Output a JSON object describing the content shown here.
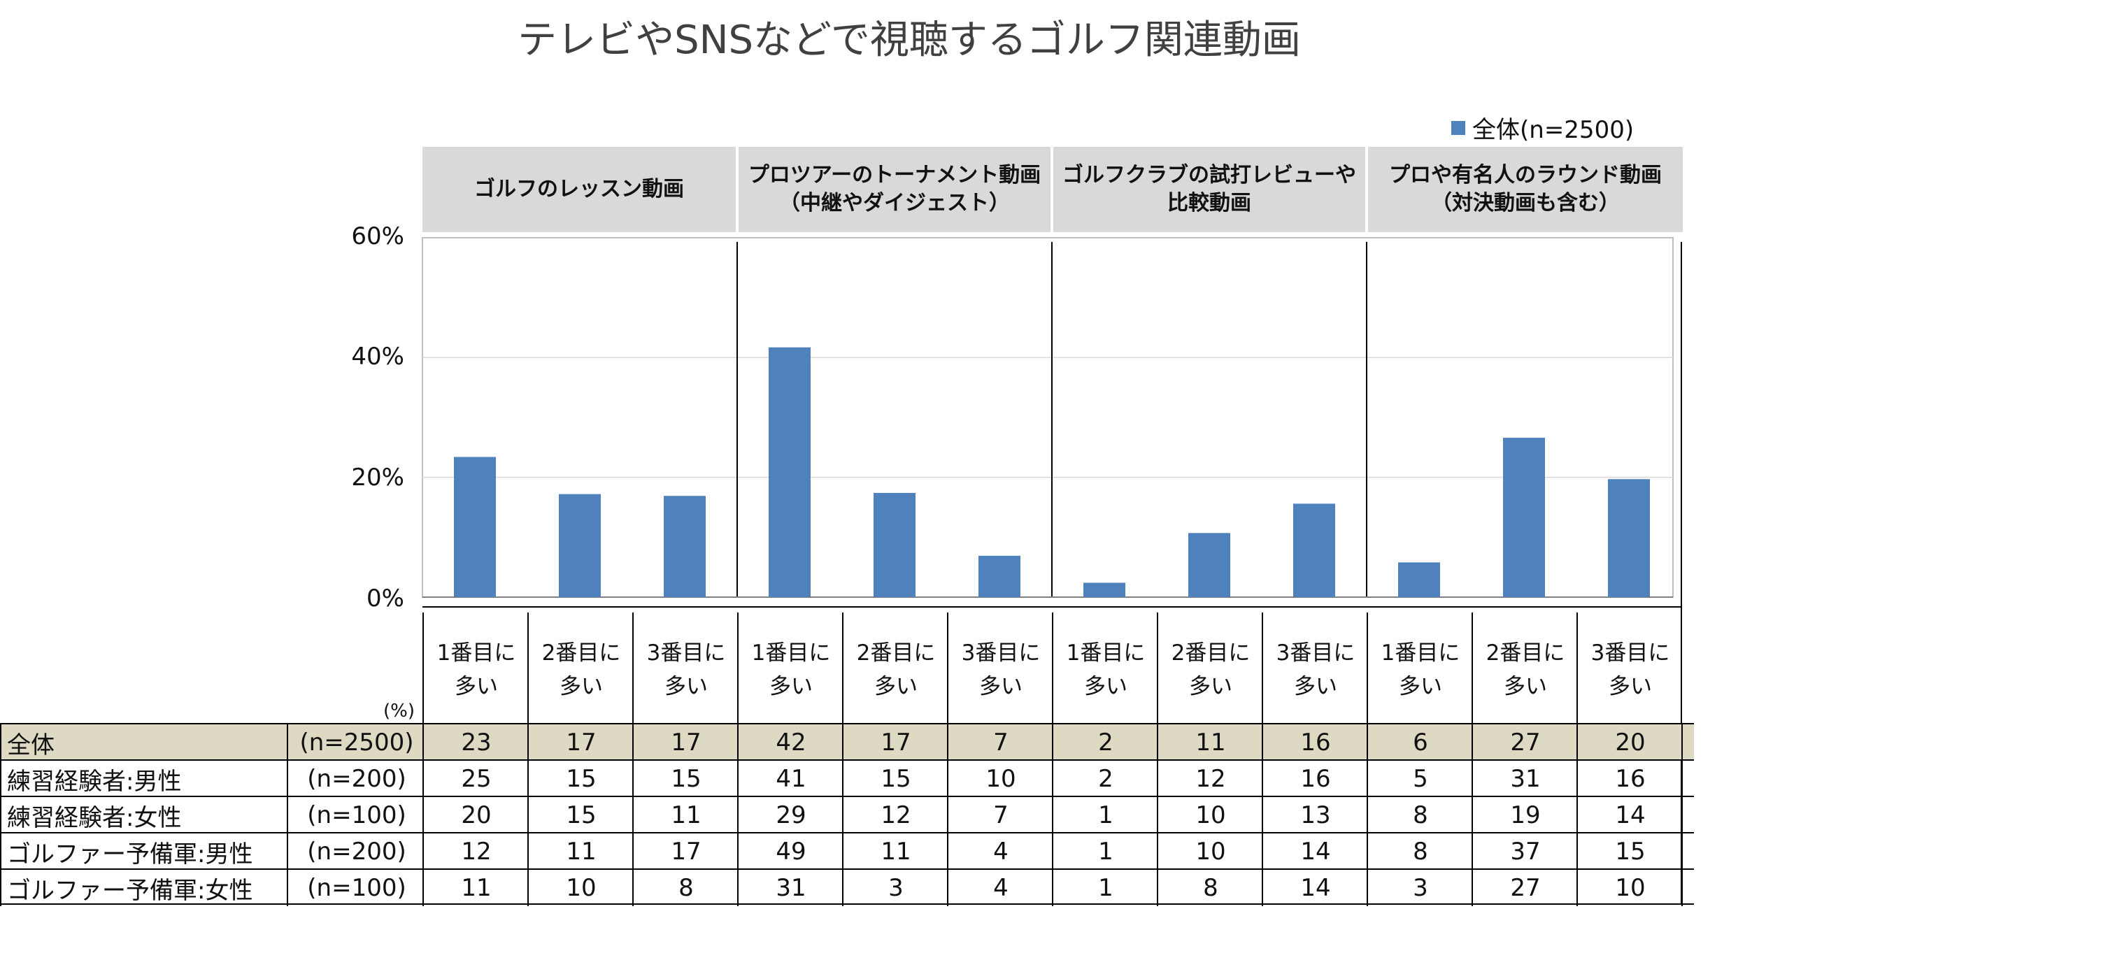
{
  "title": "テレビやSNSなどで視聴するゴルフ関連動画",
  "legend": {
    "label": "全体(n=2500)",
    "color": "#4f81bd"
  },
  "unit_label": "(%)",
  "categories": [
    {
      "label": "ゴルフのレッスン動画"
    },
    {
      "label": "プロツアーのトーナメント動画\n（中継やダイジェスト）"
    },
    {
      "label": "ゴルフクラブの試打レビューや\n比較動画"
    },
    {
      "label": "プロや有名人のラウンド動画\n（対決動画も含む）"
    }
  ],
  "sub_labels": [
    "1番目に\n多い",
    "2番目に\n多い",
    "3番目に\n多い",
    "1番目に\n多い",
    "2番目に\n多い",
    "3番目に\n多い",
    "1番目に\n多い",
    "2番目に\n多い",
    "3番目に\n多い",
    "1番目に\n多い",
    "2番目に\n多い",
    "3番目に\n多い"
  ],
  "table": {
    "rows": [
      {
        "label": "全体",
        "n": "(n=2500)",
        "highlight": true,
        "values": [
          "23",
          "17",
          "17",
          "42",
          "17",
          "7",
          "2",
          "11",
          "16",
          "6",
          "27",
          "20"
        ]
      },
      {
        "label": "練習経験者:男性",
        "n": "(n=200)",
        "values": [
          "25",
          "15",
          "15",
          "41",
          "15",
          "10",
          "2",
          "12",
          "16",
          "5",
          "31",
          "16"
        ]
      },
      {
        "label": "練習経験者:女性",
        "n": "(n=100)",
        "values": [
          "20",
          "15",
          "11",
          "29",
          "12",
          "7",
          "1",
          "10",
          "13",
          "8",
          "19",
          "14"
        ]
      },
      {
        "label": "ゴルファー予備軍:男性",
        "n": "(n=200)",
        "values": [
          "12",
          "11",
          "17",
          "49",
          "11",
          "4",
          "1",
          "10",
          "14",
          "8",
          "37",
          "15"
        ]
      },
      {
        "label": "ゴルファー予備軍:女性",
        "n": "(n=100)",
        "values": [
          "11",
          "10",
          "8",
          "31",
          "3",
          "4",
          "1",
          "8",
          "14",
          "3",
          "27",
          "10"
        ]
      }
    ]
  },
  "chart_data": {
    "type": "bar",
    "title": "テレビやSNSなどで視聴するゴルフ関連動画",
    "groups": [
      "ゴルフのレッスン動画",
      "プロツアーのトーナメント動画（中継やダイジェスト）",
      "ゴルフクラブの試打レビューや比較動画",
      "プロや有名人のラウンド動画（対決動画も含む）"
    ],
    "categories": [
      "1番目に多い",
      "2番目に多い",
      "3番目に多い",
      "1番目に多い",
      "2番目に多い",
      "3番目に多い",
      "1番目に多い",
      "2番目に多い",
      "3番目に多い",
      "1番目に多い",
      "2番目に多い",
      "3番目に多い"
    ],
    "series": [
      {
        "name": "全体(n=2500)",
        "values": [
          23.4,
          17.2,
          16.9,
          41.7,
          17.4,
          6.9,
          2.4,
          10.7,
          15.6,
          5.8,
          26.6,
          19.7
        ]
      }
    ],
    "yticks": [
      "60%",
      "40%",
      "20%",
      "0%"
    ],
    "ylim": [
      0,
      60
    ],
    "grid": true,
    "legend_position": "top-right"
  }
}
